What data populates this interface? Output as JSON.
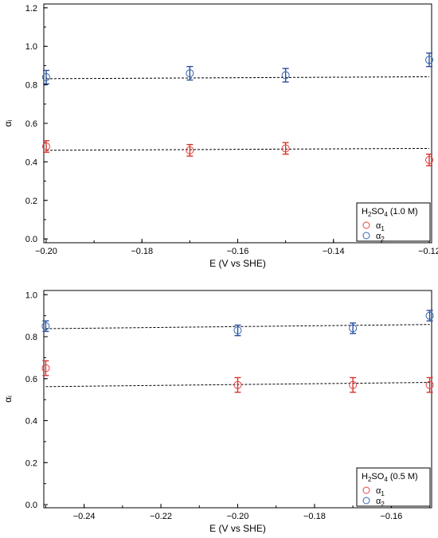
{
  "colors": {
    "alpha1": "#e8413c",
    "alpha2": "#2f64b4",
    "axis": "#000000",
    "fit": "#000000"
  },
  "chart_data": [
    {
      "type": "scatter",
      "xlabel": "E (V vs SHE)",
      "ylabel": "αᵢ",
      "xlim": [
        -0.2005,
        -0.1195
      ],
      "ylim": [
        -0.02,
        1.22
      ],
      "xticks": [
        -0.2,
        -0.18,
        -0.16,
        -0.14,
        -0.12
      ],
      "xtick_labels": [
        "−0.20",
        "−0.18",
        "−0.16",
        "−0.14",
        "−0.12"
      ],
      "yticks": [
        0.0,
        0.2,
        0.4,
        0.6,
        0.8,
        1.0,
        1.2
      ],
      "ytick_labels": [
        "0.0",
        "0.2",
        "0.4",
        "0.6",
        "0.8",
        "1.0",
        "1.2"
      ],
      "grid": false,
      "legend": {
        "position": "bottom-right",
        "title_main": "H",
        "title_sub1": "2",
        "title_mid": "SO",
        "title_sub2": "4",
        "title_rest": " (1.0 M)"
      },
      "series": [
        {
          "key": "alpha1",
          "label_main": "α",
          "label_sub": "1",
          "x": [
            -0.2,
            -0.17,
            -0.15,
            -0.12
          ],
          "y": [
            0.48,
            0.46,
            0.47,
            0.41
          ],
          "err": [
            0.03,
            0.03,
            0.03,
            0.03
          ],
          "fit": [
            0.46,
            0.47
          ]
        },
        {
          "key": "alpha2",
          "label_main": "α",
          "label_sub": "2",
          "x": [
            -0.2,
            -0.17,
            -0.15,
            -0.12
          ],
          "y": [
            0.84,
            0.86,
            0.85,
            0.93
          ],
          "err": [
            0.035,
            0.035,
            0.035,
            0.035
          ],
          "fit": [
            0.832,
            0.842
          ]
        }
      ]
    },
    {
      "type": "scatter",
      "xlabel": "E (V vs SHE)",
      "ylabel": "αᵢ",
      "xlim": [
        -0.2505,
        -0.1495
      ],
      "ylim": [
        -0.015,
        1.02
      ],
      "xticks": [
        -0.24,
        -0.22,
        -0.2,
        -0.18,
        -0.16
      ],
      "xtick_labels": [
        "−0.24",
        "−0.22",
        "−0.20",
        "−0.18",
        "−0.16"
      ],
      "yticks": [
        0.0,
        0.2,
        0.4,
        0.6,
        0.8,
        1.0
      ],
      "ytick_labels": [
        "0.0",
        "0.2",
        "0.4",
        "0.6",
        "0.8",
        "1.0"
      ],
      "grid": false,
      "legend": {
        "position": "bottom-right",
        "title_main": "H",
        "title_sub1": "2",
        "title_mid": "SO",
        "title_sub2": "4",
        "title_rest": " (0.5 M)"
      },
      "series": [
        {
          "key": "alpha1",
          "label_main": "α",
          "label_sub": "1",
          "x": [
            -0.25,
            -0.2,
            -0.17,
            -0.15
          ],
          "y": [
            0.65,
            0.57,
            0.57,
            0.57
          ],
          "err": [
            0.035,
            0.035,
            0.035,
            0.035
          ],
          "fit": [
            0.562,
            0.582
          ]
        },
        {
          "key": "alpha2",
          "label_main": "α",
          "label_sub": "2",
          "x": [
            -0.25,
            -0.2,
            -0.17,
            -0.15
          ],
          "y": [
            0.85,
            0.83,
            0.84,
            0.9
          ],
          "err": [
            0.025,
            0.025,
            0.025,
            0.025
          ],
          "fit": [
            0.838,
            0.858
          ]
        }
      ]
    }
  ]
}
